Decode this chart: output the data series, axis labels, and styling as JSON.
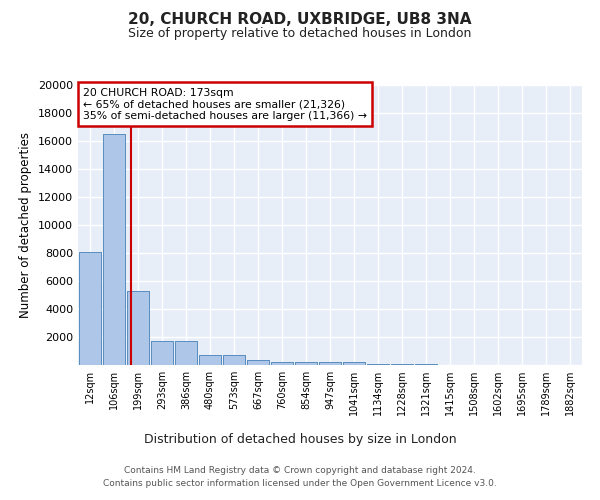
{
  "title_line1": "20, CHURCH ROAD, UXBRIDGE, UB8 3NA",
  "title_line2": "Size of property relative to detached houses in London",
  "xlabel": "Distribution of detached houses by size in London",
  "ylabel": "Number of detached properties",
  "categories": [
    "12sqm",
    "106sqm",
    "199sqm",
    "293sqm",
    "386sqm",
    "480sqm",
    "573sqm",
    "667sqm",
    "760sqm",
    "854sqm",
    "947sqm",
    "1041sqm",
    "1134sqm",
    "1228sqm",
    "1321sqm",
    "1415sqm",
    "1508sqm",
    "1602sqm",
    "1695sqm",
    "1789sqm",
    "1882sqm"
  ],
  "values": [
    8100,
    16500,
    5300,
    1750,
    1750,
    700,
    700,
    350,
    250,
    250,
    200,
    200,
    100,
    50,
    50,
    30,
    20,
    15,
    10,
    5,
    5
  ],
  "bar_color": "#aec6e8",
  "bar_edge_color": "#5a8fc0",
  "background_color": "#e8eef8",
  "grid_color": "#ffffff",
  "annotation_text": "20 CHURCH ROAD: 173sqm\n← 65% of detached houses are smaller (21,326)\n35% of semi-detached houses are larger (11,366) →",
  "annotation_box_color": "#ffffff",
  "annotation_box_edge": "#cc0000",
  "red_line_color": "#cc0000",
  "ylim": [
    0,
    20000
  ],
  "yticks": [
    0,
    2000,
    4000,
    6000,
    8000,
    10000,
    12000,
    14000,
    16000,
    18000,
    20000
  ],
  "footer_line1": "Contains HM Land Registry data © Crown copyright and database right 2024.",
  "footer_line2": "Contains public sector information licensed under the Open Government Licence v3.0."
}
